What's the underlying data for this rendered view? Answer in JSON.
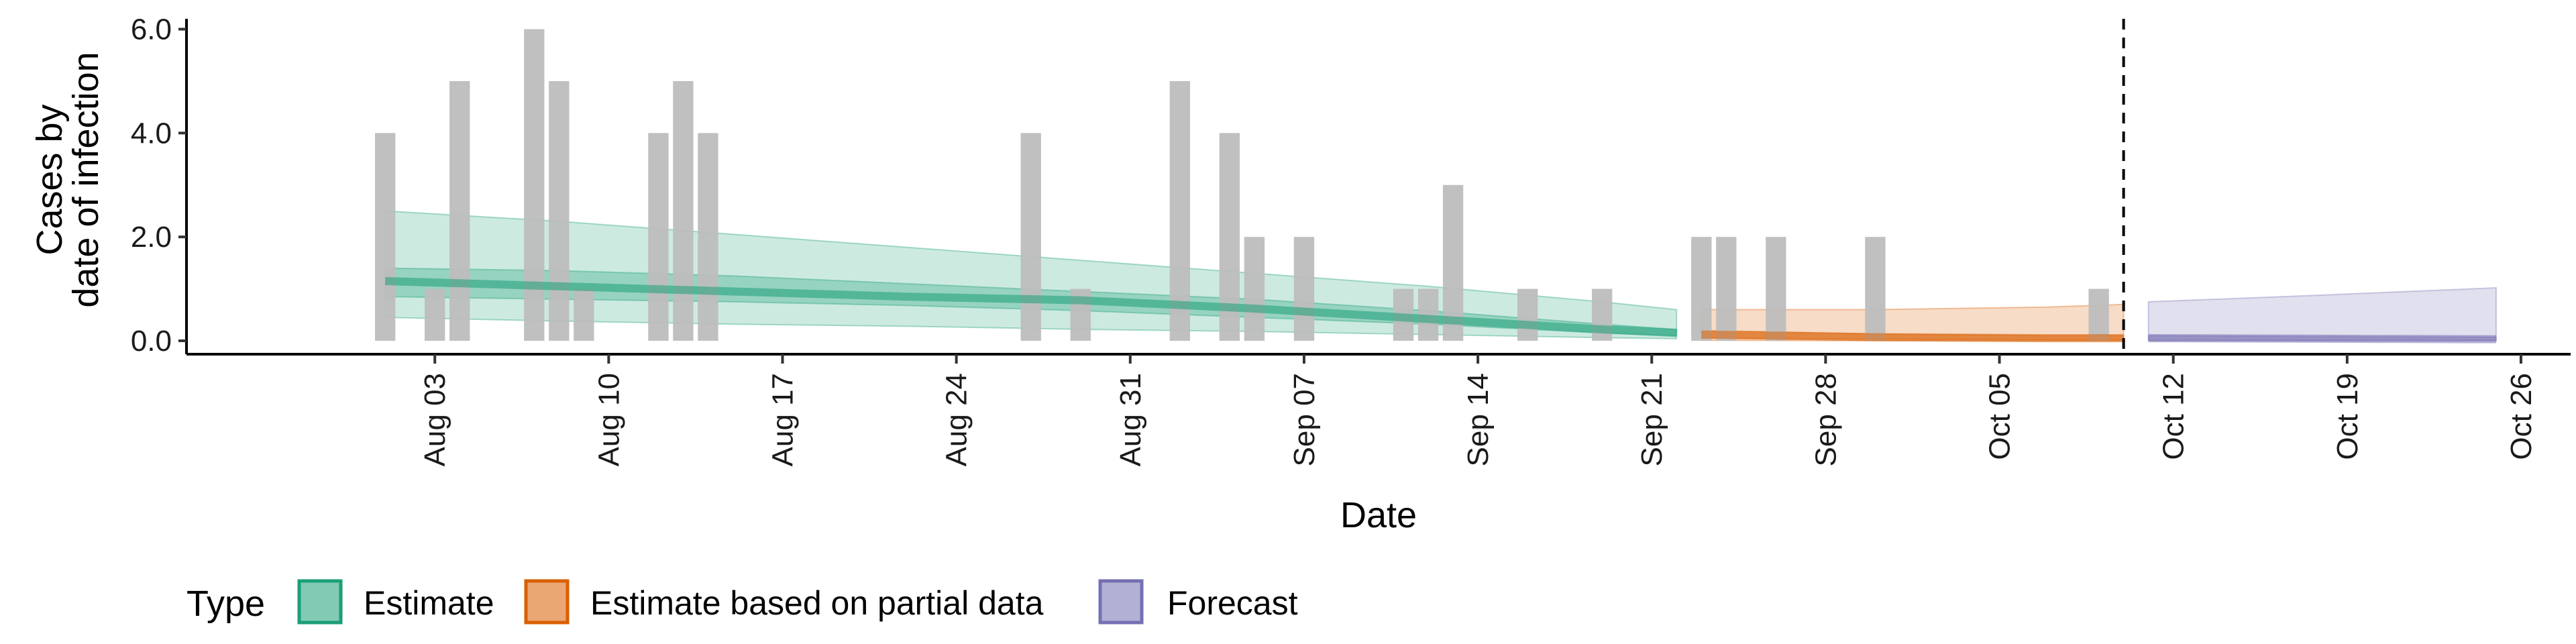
{
  "chart_data": {
    "type": "bar",
    "xlabel": "Date",
    "ylabel_lines": [
      "Cases by",
      "date of infection"
    ],
    "ylim": [
      0,
      6.2
    ],
    "yticks": [
      0,
      2,
      4,
      6
    ],
    "ytick_labels": [
      "0.0",
      "2.0",
      "4.0",
      "6.0"
    ],
    "xlim": [
      "2020-07-24",
      "2020-10-28"
    ],
    "xticks": [
      "2020-08-03",
      "2020-08-10",
      "2020-08-17",
      "2020-08-24",
      "2020-08-31",
      "2020-09-07",
      "2020-09-14",
      "2020-09-21",
      "2020-09-28",
      "2020-10-05",
      "2020-10-12",
      "2020-10-19",
      "2020-10-26"
    ],
    "xtick_labels": [
      "Aug 03",
      "Aug 10",
      "Aug 17",
      "Aug 24",
      "Aug 31",
      "Sep 07",
      "Sep 14",
      "Sep 21",
      "Sep 28",
      "Oct 05",
      "Oct 12",
      "Oct 19",
      "Oct 26"
    ],
    "forecast_line_date": "2020-10-10",
    "observed_cases": [
      {
        "date": "2020-08-01",
        "value": 4
      },
      {
        "date": "2020-08-03",
        "value": 1
      },
      {
        "date": "2020-08-04",
        "value": 5
      },
      {
        "date": "2020-08-07",
        "value": 6
      },
      {
        "date": "2020-08-08",
        "value": 5
      },
      {
        "date": "2020-08-09",
        "value": 1
      },
      {
        "date": "2020-08-12",
        "value": 4
      },
      {
        "date": "2020-08-13",
        "value": 5
      },
      {
        "date": "2020-08-14",
        "value": 4
      },
      {
        "date": "2020-08-27",
        "value": 4
      },
      {
        "date": "2020-08-29",
        "value": 1
      },
      {
        "date": "2020-09-02",
        "value": 5
      },
      {
        "date": "2020-09-04",
        "value": 4
      },
      {
        "date": "2020-09-05",
        "value": 2
      },
      {
        "date": "2020-09-07",
        "value": 2
      },
      {
        "date": "2020-09-11",
        "value": 1
      },
      {
        "date": "2020-09-12",
        "value": 1
      },
      {
        "date": "2020-09-13",
        "value": 3
      },
      {
        "date": "2020-09-16",
        "value": 1
      },
      {
        "date": "2020-09-19",
        "value": 1
      },
      {
        "date": "2020-09-23",
        "value": 2
      },
      {
        "date": "2020-09-24",
        "value": 2
      },
      {
        "date": "2020-09-26",
        "value": 2
      },
      {
        "date": "2020-09-30",
        "value": 2
      },
      {
        "date": "2020-10-09",
        "value": 1
      }
    ],
    "series": [
      {
        "name": "Estimate",
        "color": "#1b9e77",
        "dates": [
          "2020-08-01",
          "2020-08-08",
          "2020-08-15",
          "2020-08-22",
          "2020-08-29",
          "2020-09-05",
          "2020-09-12",
          "2020-09-19",
          "2020-09-22"
        ],
        "median": [
          1.15,
          1.05,
          0.95,
          0.85,
          0.78,
          0.62,
          0.42,
          0.22,
          0.15
        ],
        "lower_50": [
          0.85,
          0.8,
          0.75,
          0.68,
          0.58,
          0.45,
          0.32,
          0.15,
          0.1
        ],
        "upper_50": [
          1.4,
          1.35,
          1.25,
          1.1,
          0.95,
          0.8,
          0.58,
          0.32,
          0.22
        ],
        "lower_90": [
          0.45,
          0.38,
          0.32,
          0.28,
          0.22,
          0.18,
          0.12,
          0.06,
          0.04
        ],
        "upper_90": [
          2.5,
          2.3,
          2.05,
          1.8,
          1.55,
          1.3,
          1.05,
          0.75,
          0.6
        ]
      },
      {
        "name": "Estimate based on partial data",
        "color": "#d95f02",
        "dates": [
          "2020-09-23",
          "2020-09-30",
          "2020-10-07",
          "2020-10-10"
        ],
        "median": [
          0.12,
          0.07,
          0.05,
          0.05
        ],
        "lower_50": [
          0.05,
          0.03,
          0.02,
          0.02
        ],
        "upper_50": [
          0.2,
          0.13,
          0.1,
          0.1
        ],
        "lower_90": [
          0.01,
          0.0,
          0.0,
          0.0
        ],
        "upper_90": [
          0.6,
          0.6,
          0.65,
          0.7
        ]
      },
      {
        "name": "Forecast",
        "color": "#7570b3",
        "dates": [
          "2020-10-11",
          "2020-10-18",
          "2020-10-25"
        ],
        "median": [
          0.05,
          0.04,
          0.03
        ],
        "lower_50": [
          0.02,
          0.01,
          0.01
        ],
        "upper_50": [
          0.1,
          0.08,
          0.07
        ],
        "lower_90": [
          0.0,
          0.0,
          0.0
        ],
        "upper_90": [
          0.75,
          0.88,
          1.02
        ]
      }
    ],
    "legend": {
      "title": "Type",
      "position": "bottom",
      "entries": [
        "Estimate",
        "Estimate based on partial data",
        "Forecast"
      ]
    },
    "bar_color": "#bdbdbd",
    "grid": false
  }
}
